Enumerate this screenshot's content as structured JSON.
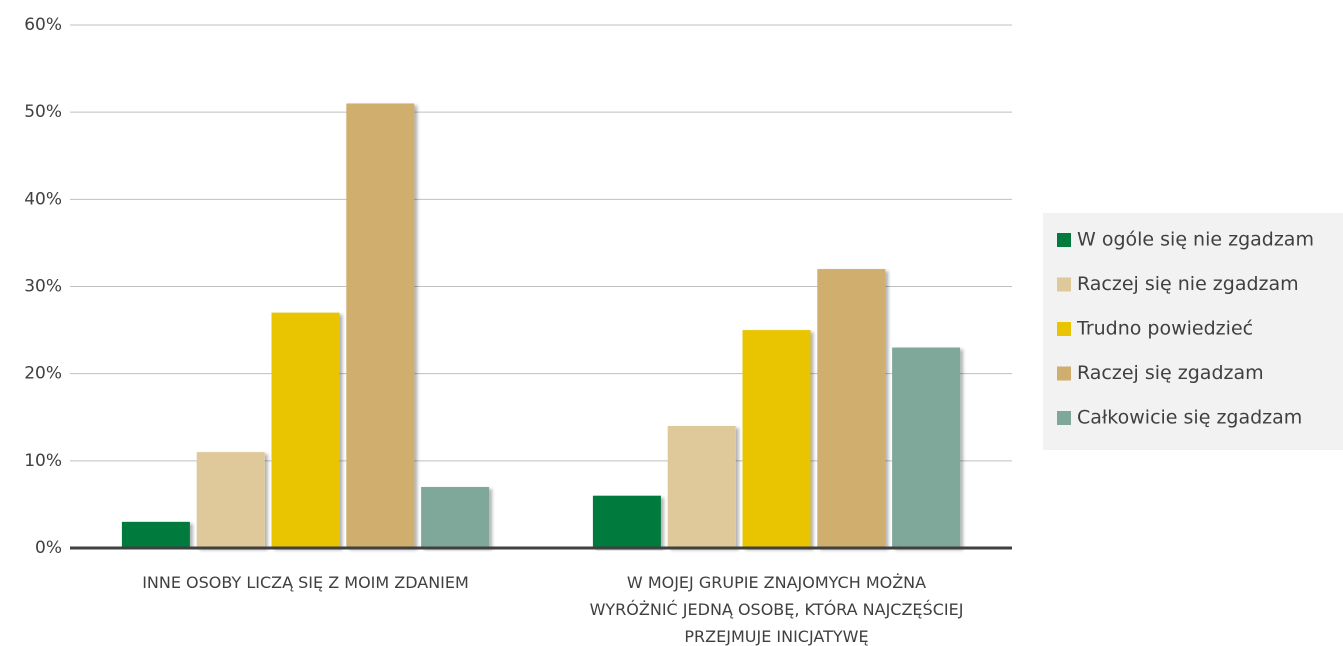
{
  "chart_data": {
    "type": "bar",
    "categories": [
      "INNE OSOBY LICZĄ SIĘ Z MOIM ZDANIEM",
      "W MOJEJ GRUPIE ZNAJOMYCH MOŻNA\nWYRÓŻNIĆ JEDNĄ OSOBĘ, KTÓRA NAJCZĘŚCIEJ\nPRZEJMUJE INICJATYWĘ"
    ],
    "series": [
      {
        "name": "W ogóle się nie zgadzam",
        "color": "#007a3d",
        "values": [
          3,
          6
        ]
      },
      {
        "name": "Raczej się nie zgadzam",
        "color": "#dfc99b",
        "values": [
          11,
          14
        ]
      },
      {
        "name": "Trudno powiedzieć",
        "color": "#e8c500",
        "values": [
          27,
          25
        ]
      },
      {
        "name": "Raczej się zgadzam",
        "color": "#cfae6e",
        "values": [
          51,
          32
        ]
      },
      {
        "name": "Całkowicie się zgadzam",
        "color": "#7fa89a",
        "values": [
          7,
          23
        ]
      }
    ],
    "ylim": [
      0,
      60
    ],
    "yticks": [
      {
        "value": 0,
        "label": "0%"
      },
      {
        "value": 10,
        "label": "10%"
      },
      {
        "value": 20,
        "label": "20%"
      },
      {
        "value": 30,
        "label": "30%"
      },
      {
        "value": 40,
        "label": "40%"
      },
      {
        "value": 50,
        "label": "50%"
      },
      {
        "value": 60,
        "label": "60%"
      }
    ],
    "grid": true,
    "legend": "right"
  }
}
